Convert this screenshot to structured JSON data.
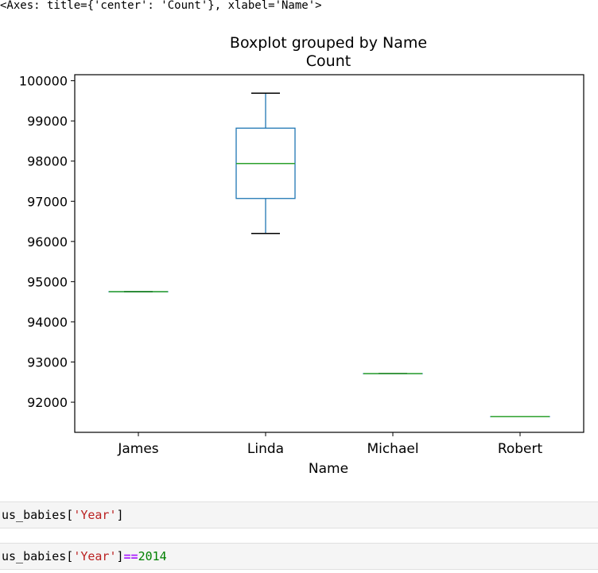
{
  "output": {
    "repr": "<Axes: title={'center': 'Count'}, xlabel='Name'>"
  },
  "chart_data": {
    "type": "box",
    "suptitle": "Boxplot grouped by Name",
    "title": "Count",
    "xlabel": "Name",
    "ylabel": "",
    "categories": [
      "James",
      "Linda",
      "Michael",
      "Robert"
    ],
    "boxes": [
      {
        "name": "James",
        "whislo": 94750,
        "q1": 94750,
        "med": 94750,
        "q3": 94750,
        "whishi": 94750
      },
      {
        "name": "Linda",
        "whislo": 96200,
        "q1": 97070,
        "med": 97940,
        "q3": 98820,
        "whishi": 99690
      },
      {
        "name": "Michael",
        "whislo": 92710,
        "q1": 92710,
        "med": 92710,
        "q3": 92710,
        "whishi": 92710
      },
      {
        "name": "Robert",
        "whislo": 91640,
        "q1": 91640,
        "med": 91640,
        "q3": 91640,
        "whishi": 91640
      }
    ],
    "ylim": [
      91250,
      100150
    ],
    "yticks": [
      92000,
      93000,
      94000,
      95000,
      96000,
      97000,
      98000,
      99000,
      100000
    ],
    "ytick_labels": [
      "92000",
      "93000",
      "94000",
      "95000",
      "96000",
      "97000",
      "98000",
      "99000",
      "100000"
    ],
    "grid": false,
    "colors": {
      "box": "#1f77b4",
      "median": "#2ca02c",
      "whisker_cap": "#000000",
      "spine": "#000000"
    }
  },
  "cells": [
    {
      "prefix": "us_babies[",
      "str": "'Year'",
      "suffix": "]",
      "op": "",
      "num": ""
    },
    {
      "prefix": "us_babies[",
      "str": "'Year'",
      "suffix": "]",
      "op": "==",
      "num": "2014"
    }
  ]
}
